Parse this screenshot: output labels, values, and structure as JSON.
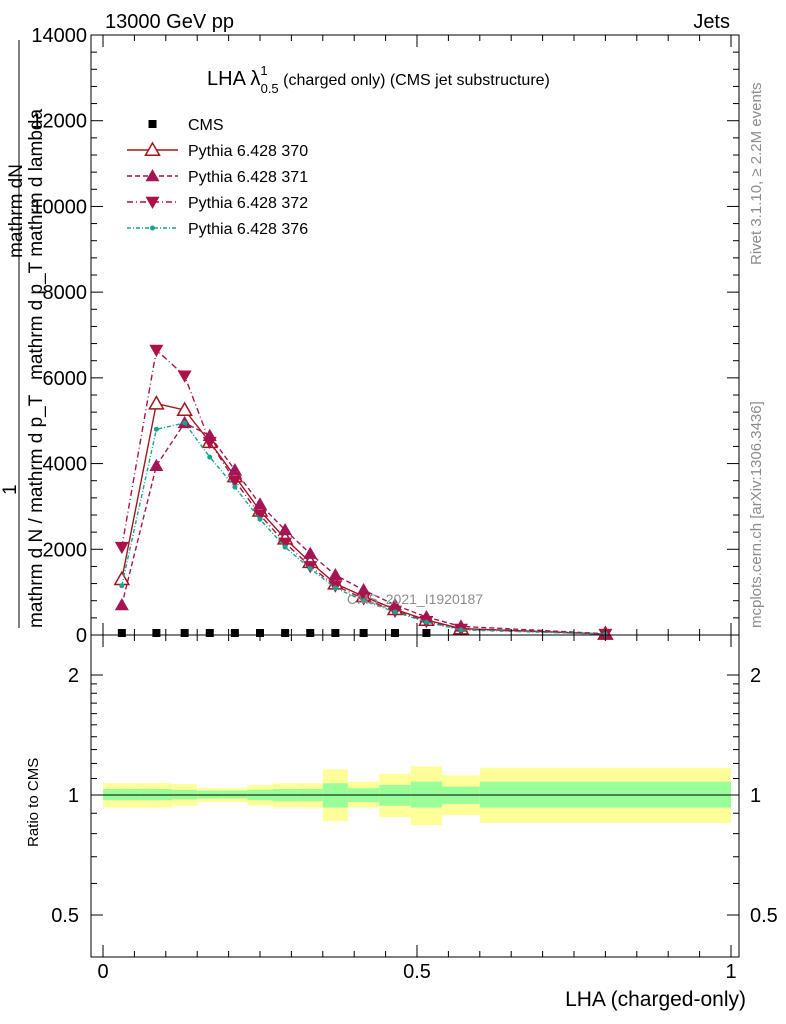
{
  "header": {
    "left": "13000 GeV pp",
    "right": "Jets"
  },
  "side": {
    "top": "Rivet 3.1.10, ≥ 2.2M events",
    "bottom": "mcplots.cern.ch [arXiv:1306.3436]"
  },
  "colors": {
    "cms": "#000000",
    "p370": "#a0161a",
    "p371": "#a31554",
    "p372": "#ac1147",
    "p376": "#14a68c",
    "band_inner": "#99ff99",
    "band_outer": "#ffff99",
    "watermark": "#8c8c8c"
  },
  "chart_data": [
    {
      "type": "line",
      "title": "LHA λ",
      "title_sup": "1",
      "title_sub": "0.5",
      "title_rest": " (charged only) (CMS jet substructure)",
      "ylabel_top": "mathrm dN",
      "ylabel_mid": "mathrm d p_T mathrm d lambda",
      "ylabel_front": "1",
      "ylabel_bottom": "mathrm d N / mathrm d p_T",
      "ylim": [
        0,
        14000
      ],
      "y_ticks": [
        0,
        2000,
        4000,
        6000,
        8000,
        10000,
        12000,
        14000
      ],
      "y_tick_labels": [
        "0",
        "2000",
        "4000",
        "6000",
        "8000",
        "10000",
        "12000",
        "14000"
      ],
      "xlim": [
        0,
        1
      ],
      "watermark": "CMS_2021_I1920187",
      "legend_position": "top-left",
      "series": [
        {
          "name": "CMS",
          "key": "cms",
          "marker": "square",
          "x": [
            0.03,
            0.085,
            0.13,
            0.17,
            0.21,
            0.25,
            0.29,
            0.33,
            0.37,
            0.415,
            0.465,
            0.515
          ],
          "y": [
            0,
            0,
            0,
            0,
            0,
            0,
            0,
            0,
            0,
            0,
            0,
            0
          ]
        },
        {
          "name": "Pythia 6.428 370",
          "key": "p370",
          "marker": "triangle-up-open",
          "dash": "",
          "x": [
            0.03,
            0.085,
            0.13,
            0.17,
            0.21,
            0.25,
            0.29,
            0.33,
            0.37,
            0.415,
            0.465,
            0.515,
            0.57,
            0.8
          ],
          "y": [
            1300,
            5400,
            5250,
            4500,
            3700,
            2900,
            2250,
            1700,
            1200,
            900,
            600,
            350,
            150,
            25
          ]
        },
        {
          "name": "Pythia 6.428 371",
          "key": "p371",
          "marker": "triangle-up",
          "dash": "5,3",
          "x": [
            0.03,
            0.085,
            0.13,
            0.17,
            0.21,
            0.25,
            0.29,
            0.33,
            0.37,
            0.415,
            0.465,
            0.515,
            0.57,
            0.8
          ],
          "y": [
            700,
            3950,
            4950,
            4650,
            3850,
            3050,
            2450,
            1900,
            1400,
            1050,
            700,
            420,
            200,
            30
          ]
        },
        {
          "name": "Pythia 6.428 372",
          "key": "p372",
          "marker": "triangle-down",
          "dash": "6,3,1,3",
          "x": [
            0.03,
            0.085,
            0.13,
            0.17,
            0.21,
            0.25,
            0.29,
            0.33,
            0.37,
            0.415,
            0.465,
            0.515,
            0.57,
            0.8
          ],
          "y": [
            2050,
            6650,
            6050,
            4500,
            3600,
            2800,
            2150,
            1600,
            1150,
            850,
            560,
            320,
            140,
            20
          ]
        },
        {
          "name": "Pythia 6.428 376",
          "key": "p376",
          "marker": "dot",
          "dash": "4,2,1,2",
          "x": [
            0.03,
            0.085,
            0.13,
            0.17,
            0.21,
            0.25,
            0.29,
            0.33,
            0.37,
            0.415,
            0.465,
            0.515,
            0.57,
            0.8
          ],
          "y": [
            1150,
            4800,
            4950,
            4150,
            3450,
            2700,
            2050,
            1550,
            1100,
            800,
            540,
            300,
            120,
            20
          ]
        }
      ]
    },
    {
      "type": "area",
      "ylabel": "Ratio to CMS",
      "xlabel": "LHA (charged-only)",
      "yscale": "log",
      "ylim": [
        0.4,
        2.4
      ],
      "y_ticks": [
        0.5,
        1,
        2
      ],
      "y_tick_labels": [
        "0.5",
        "1",
        "2"
      ],
      "xlim": [
        0,
        1
      ],
      "x_ticks": [
        0,
        0.5,
        1
      ],
      "x_tick_labels": [
        "0",
        "0.5",
        "1"
      ],
      "bins": [
        {
          "x0": 0.0,
          "x1": 0.06,
          "inner": [
            0.97,
            1.035
          ],
          "outer": [
            0.93,
            1.07
          ]
        },
        {
          "x0": 0.06,
          "x1": 0.11,
          "inner": [
            0.97,
            1.035
          ],
          "outer": [
            0.93,
            1.07
          ]
        },
        {
          "x0": 0.11,
          "x1": 0.15,
          "inner": [
            0.975,
            1.03
          ],
          "outer": [
            0.94,
            1.065
          ]
        },
        {
          "x0": 0.15,
          "x1": 0.19,
          "inner": [
            0.98,
            1.025
          ],
          "outer": [
            0.96,
            1.04
          ]
        },
        {
          "x0": 0.19,
          "x1": 0.23,
          "inner": [
            0.98,
            1.025
          ],
          "outer": [
            0.96,
            1.04
          ]
        },
        {
          "x0": 0.23,
          "x1": 0.27,
          "inner": [
            0.97,
            1.03
          ],
          "outer": [
            0.94,
            1.06
          ]
        },
        {
          "x0": 0.27,
          "x1": 0.31,
          "inner": [
            0.965,
            1.035
          ],
          "outer": [
            0.93,
            1.07
          ]
        },
        {
          "x0": 0.31,
          "x1": 0.35,
          "inner": [
            0.965,
            1.035
          ],
          "outer": [
            0.93,
            1.07
          ]
        },
        {
          "x0": 0.35,
          "x1": 0.39,
          "inner": [
            0.93,
            1.07
          ],
          "outer": [
            0.86,
            1.16
          ]
        },
        {
          "x0": 0.39,
          "x1": 0.44,
          "inner": [
            0.96,
            1.04
          ],
          "outer": [
            0.93,
            1.08
          ]
        },
        {
          "x0": 0.44,
          "x1": 0.49,
          "inner": [
            0.94,
            1.06
          ],
          "outer": [
            0.88,
            1.13
          ]
        },
        {
          "x0": 0.49,
          "x1": 0.54,
          "inner": [
            0.93,
            1.08
          ],
          "outer": [
            0.84,
            1.18
          ]
        },
        {
          "x0": 0.54,
          "x1": 0.6,
          "inner": [
            0.95,
            1.05
          ],
          "outer": [
            0.89,
            1.12
          ]
        },
        {
          "x0": 0.6,
          "x1": 1.0,
          "inner": [
            0.93,
            1.08
          ],
          "outer": [
            0.85,
            1.17
          ]
        }
      ]
    }
  ]
}
